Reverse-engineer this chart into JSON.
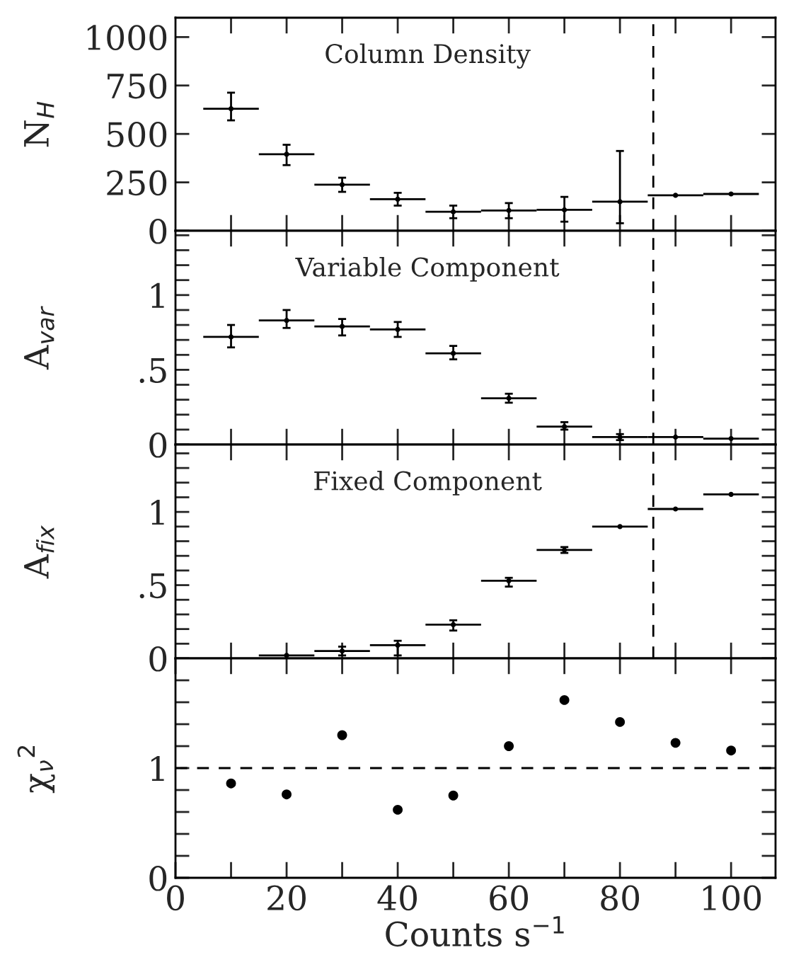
{
  "chart_data": [
    {
      "type": "scatter",
      "title": "Column Density",
      "ylabel": "N$_{H}$",
      "x": [
        10,
        20,
        30,
        40,
        50,
        60,
        70,
        80,
        90,
        100
      ],
      "series": [
        {
          "color": "#000000",
          "values": [
            630,
            395,
            238,
            163,
            98,
            105,
            108,
            150,
            183,
            190
          ],
          "errors": [
            [
              570,
              713
            ],
            [
              339,
              444
            ],
            [
              201,
              274
            ],
            [
              130,
              196
            ],
            [
              65,
              130
            ],
            [
              65,
              143
            ],
            [
              47,
              175
            ],
            [
              39,
              412
            ],
            null,
            null
          ],
          "xerrors": [
            5,
            5,
            5,
            5,
            5,
            5,
            5,
            5,
            5,
            5
          ]
        }
      ],
      "xlim": [
        0,
        108
      ],
      "ylim": [
        0,
        1100
      ],
      "yticks": [
        0,
        250,
        500,
        750,
        1000
      ],
      "xticks": [
        {
          "value": 10,
          "label": null
        },
        {
          "value": 20,
          "label": null
        },
        {
          "value": 30,
          "label": null
        },
        {
          "value": 40,
          "label": null
        },
        {
          "value": 50,
          "label": null
        },
        {
          "value": 60,
          "label": null
        },
        {
          "value": 70,
          "label": null
        },
        {
          "value": 80,
          "label": null
        },
        {
          "value": 90,
          "label": null
        },
        {
          "value": 100,
          "label": null
        }
      ],
      "tick_labels": "y",
      "ref_lines": [
        {
          "axis": "x",
          "value": 86,
          "line_style": "dashed",
          "color": "#000000"
        }
      ]
    },
    {
      "type": "scatter",
      "title": "Variable Component",
      "ylabel": "A$_{var}$",
      "x": [
        10,
        20,
        30,
        40,
        50,
        60,
        70,
        80,
        90,
        100
      ],
      "series": [
        {
          "color": "#000000",
          "values": [
            0.72,
            0.83,
            0.79,
            0.77,
            0.61,
            0.31,
            0.12,
            0.05,
            0.05,
            0.04
          ],
          "errors": [
            [
              0.65,
              0.8
            ],
            [
              0.78,
              0.9
            ],
            [
              0.73,
              0.84
            ],
            [
              0.72,
              0.82
            ],
            [
              0.57,
              0.66
            ],
            [
              0.28,
              0.34
            ],
            [
              0.1,
              0.15
            ],
            [
              0.03,
              0.07
            ],
            null,
            null
          ],
          "xerrors": [
            5,
            5,
            5,
            5,
            5,
            5,
            5,
            5,
            5,
            5
          ]
        }
      ],
      "xlim": [
        0,
        108
      ],
      "ylim": [
        0,
        1.43
      ],
      "yticks": [
        0,
        {
          "value": 0.1,
          "label": null
        },
        {
          "value": 0.2,
          "label": null
        },
        {
          "value": 0.3,
          "label": null
        },
        {
          "value": 0.4,
          "label": null
        },
        {
          "value": 0.5,
          "label": ".5"
        },
        {
          "value": 0.6,
          "label": null
        },
        {
          "value": 0.7,
          "label": null
        },
        {
          "value": 0.8,
          "label": null
        },
        {
          "value": 0.9,
          "label": null
        },
        1,
        {
          "value": 1.1,
          "label": null
        },
        {
          "value": 1.2,
          "label": null
        },
        {
          "value": 1.3,
          "label": null
        },
        {
          "value": 1.4,
          "label": null
        }
      ],
      "xticks": [
        {
          "value": 10,
          "label": null
        },
        {
          "value": 20,
          "label": null
        },
        {
          "value": 30,
          "label": null
        },
        {
          "value": 40,
          "label": null
        },
        {
          "value": 50,
          "label": null
        },
        {
          "value": 60,
          "label": null
        },
        {
          "value": 70,
          "label": null
        },
        {
          "value": 80,
          "label": null
        },
        {
          "value": 90,
          "label": null
        },
        {
          "value": 100,
          "label": null
        }
      ],
      "tick_labels": "y",
      "ref_lines": [
        {
          "axis": "x",
          "value": 86,
          "line_style": "dashed",
          "color": "#000000"
        }
      ]
    },
    {
      "type": "scatter",
      "title": "Fixed Component",
      "ylabel": "A$_{fix}$",
      "x": [
        20,
        30,
        40,
        50,
        60,
        70,
        80,
        90,
        100
      ],
      "series": [
        {
          "color": "#000000",
          "values": [
            0.02,
            0.05,
            0.09,
            0.23,
            0.53,
            0.74,
            0.9,
            1.02,
            1.12
          ],
          "errors": [
            null,
            [
              0.02,
              0.08
            ],
            [
              0.02,
              0.12
            ],
            [
              0.19,
              0.26
            ],
            [
              0.49,
              0.55
            ],
            [
              0.72,
              0.76
            ],
            null,
            null,
            null
          ],
          "xerrors": [
            5,
            5,
            5,
            5,
            5,
            5,
            5,
            5,
            5
          ]
        }
      ],
      "xlim": [
        0,
        108
      ],
      "ylim": [
        0,
        1.46
      ],
      "yticks": [
        0,
        {
          "value": 0.1,
          "label": null
        },
        {
          "value": 0.2,
          "label": null
        },
        {
          "value": 0.3,
          "label": null
        },
        {
          "value": 0.4,
          "label": null
        },
        {
          "value": 0.5,
          "label": ".5"
        },
        {
          "value": 0.6,
          "label": null
        },
        {
          "value": 0.7,
          "label": null
        },
        {
          "value": 0.8,
          "label": null
        },
        {
          "value": 0.9,
          "label": null
        },
        1,
        {
          "value": 1.1,
          "label": null
        },
        {
          "value": 1.2,
          "label": null
        },
        {
          "value": 1.3,
          "label": null
        },
        {
          "value": 1.4,
          "label": null
        }
      ],
      "xticks": [
        {
          "value": 10,
          "label": null
        },
        {
          "value": 20,
          "label": null
        },
        {
          "value": 30,
          "label": null
        },
        {
          "value": 40,
          "label": null
        },
        {
          "value": 50,
          "label": null
        },
        {
          "value": 60,
          "label": null
        },
        {
          "value": 70,
          "label": null
        },
        {
          "value": 80,
          "label": null
        },
        {
          "value": 90,
          "label": null
        },
        {
          "value": 100,
          "label": null
        }
      ],
      "tick_labels": "y",
      "ref_lines": [
        {
          "axis": "x",
          "value": 86,
          "line_style": "dashed",
          "color": "#000000"
        }
      ]
    },
    {
      "type": "scatter",
      "ylabel": "χ$_{ν}$$^{2}$",
      "xlabel": "Counts s$^{−1}$",
      "x": [
        10,
        20,
        30,
        40,
        50,
        60,
        70,
        80,
        90,
        100
      ],
      "marker": "circle",
      "series": [
        {
          "color": "#000000",
          "values": [
            0.86,
            0.76,
            1.3,
            0.62,
            0.75,
            1.2,
            1.62,
            1.42,
            1.23,
            1.16
          ]
        }
      ],
      "xlim": [
        0,
        108
      ],
      "ylim": [
        0,
        2
      ],
      "yticks": [
        0,
        {
          "value": 0.2,
          "label": null
        },
        {
          "value": 0.4,
          "label": null
        },
        {
          "value": 0.6,
          "label": null
        },
        {
          "value": 0.8,
          "label": null
        },
        1,
        {
          "value": 1.2,
          "label": null
        },
        {
          "value": 1.4,
          "label": null
        },
        {
          "value": 1.6,
          "label": null
        },
        {
          "value": 1.8,
          "label": null
        }
      ],
      "xticks": [
        0,
        {
          "value": 10,
          "label": null
        },
        20,
        {
          "value": 30,
          "label": null
        },
        40,
        {
          "value": 50,
          "label": null
        },
        60,
        {
          "value": 70,
          "label": null
        },
        80,
        {
          "value": 90,
          "label": null
        },
        100
      ],
      "ref_lines": [
        {
          "axis": "y",
          "value": 1,
          "line_style": "dashed",
          "color": "#000000"
        }
      ]
    }
  ]
}
